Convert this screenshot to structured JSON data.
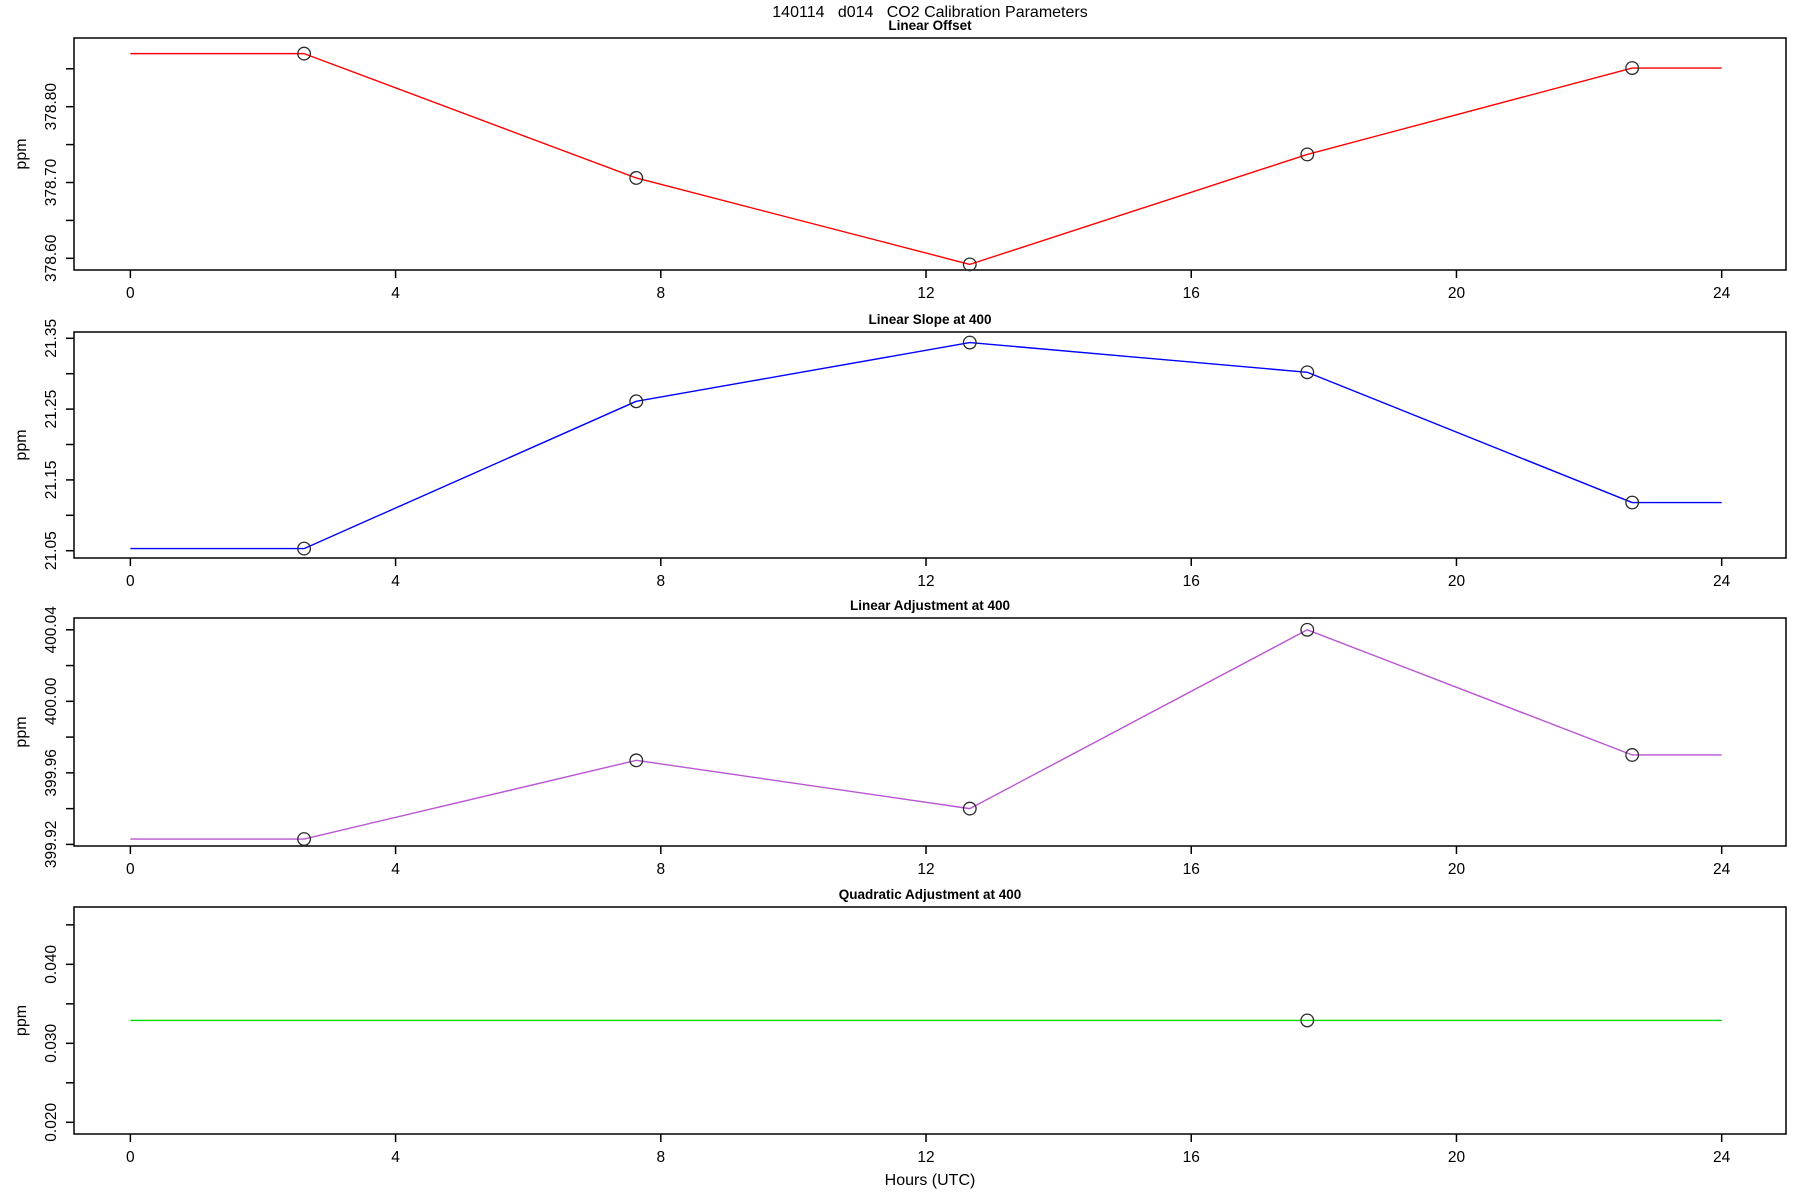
{
  "figure": {
    "title": "140114   d014   CO2 Calibration Parameters",
    "xlabel": "Hours (UTC)",
    "background": "#FFFFFF"
  },
  "chart_data": [
    {
      "type": "line",
      "title": "Linear Offset",
      "ylabel": "ppm",
      "line_color": "#FF0000",
      "marker_color": "#2A2A2A",
      "xlim": [
        -0.85,
        24.97
      ],
      "ylim": [
        378.5846,
        378.8906
      ],
      "xticks": [
        0,
        4,
        8,
        12,
        16,
        20,
        24
      ],
      "xtick_labels": [
        "0",
        "4",
        "8",
        "12",
        "16",
        "20",
        "24"
      ],
      "yticks": [
        378.6,
        378.65,
        378.7,
        378.75,
        378.8,
        378.85
      ],
      "ytick_labels": [
        "378.60",
        "",
        "378.70",
        "",
        "378.80",
        ""
      ],
      "line_x": [
        0,
        2.62,
        7.63,
        12.66,
        17.75,
        22.65,
        24
      ],
      "line_y": [
        378.87,
        378.87,
        378.706,
        378.592,
        378.737,
        378.851,
        378.851
      ],
      "points_x": [
        2.62,
        7.63,
        12.66,
        17.75,
        22.65
      ],
      "points_y": [
        378.87,
        378.706,
        378.592,
        378.737,
        378.851
      ]
    },
    {
      "type": "line",
      "title": "Linear Slope at 400",
      "ylabel": "ppm",
      "line_color": "#0000FF",
      "marker_color": "#2A2A2A",
      "xlim": [
        -0.85,
        24.97
      ],
      "ylim": [
        21.0397,
        21.3589
      ],
      "xticks": [
        0,
        4,
        8,
        12,
        16,
        20,
        24
      ],
      "xtick_labels": [
        "0",
        "4",
        "8",
        "12",
        "16",
        "20",
        "24"
      ],
      "yticks": [
        21.05,
        21.1,
        21.15,
        21.2,
        21.25,
        21.3,
        21.35
      ],
      "ytick_labels": [
        "21.05",
        "",
        "21.15",
        "",
        "21.25",
        "",
        "21.35"
      ],
      "line_x": [
        0,
        2.62,
        7.63,
        12.66,
        17.75,
        22.65,
        24
      ],
      "line_y": [
        21.053,
        21.053,
        21.261,
        21.344,
        21.302,
        21.118,
        21.118
      ],
      "points_x": [
        2.62,
        7.63,
        12.66,
        17.75,
        22.65
      ],
      "points_y": [
        21.053,
        21.261,
        21.344,
        21.302,
        21.118
      ]
    },
    {
      "type": "line",
      "title": "Linear Adjustment at 400",
      "ylabel": "ppm",
      "line_color": "#BA55D3",
      "marker_color": "#2A2A2A",
      "xlim": [
        -0.85,
        24.97
      ],
      "ylim": [
        399.9191,
        400.0466
      ],
      "xticks": [
        0,
        4,
        8,
        12,
        16,
        20,
        24
      ],
      "xtick_labels": [
        "0",
        "4",
        "8",
        "12",
        "16",
        "20",
        "24"
      ],
      "yticks": [
        399.92,
        399.94,
        399.96,
        399.98,
        400.0,
        400.02,
        400.04
      ],
      "ytick_labels": [
        "399.92",
        "",
        "399.96",
        "",
        "400.00",
        "",
        "400.04"
      ],
      "line_x": [
        0,
        2.62,
        7.63,
        12.66,
        17.75,
        22.65,
        24
      ],
      "line_y": [
        399.923,
        399.923,
        399.967,
        399.94,
        400.04,
        399.97,
        399.97
      ],
      "points_x": [
        2.62,
        7.63,
        12.66,
        17.75,
        22.65
      ],
      "points_y": [
        399.923,
        399.967,
        399.94,
        400.04,
        399.97
      ]
    },
    {
      "type": "line",
      "title": "Quadratic Adjustment at 400",
      "ylabel": "ppm",
      "line_color": "#00DD00",
      "marker_color": "#2A2A2A",
      "xlim": [
        -0.85,
        24.97
      ],
      "ylim": [
        0.01852,
        0.04726
      ],
      "xticks": [
        0,
        4,
        8,
        12,
        16,
        20,
        24
      ],
      "xtick_labels": [
        "0",
        "4",
        "8",
        "12",
        "16",
        "20",
        "24"
      ],
      "yticks": [
        0.02,
        0.025,
        0.03,
        0.035,
        0.04,
        0.045
      ],
      "ytick_labels": [
        "0.020",
        "",
        "0.030",
        "",
        "0.040",
        ""
      ],
      "line_x": [
        0,
        24
      ],
      "line_y": [
        0.0329,
        0.0329
      ],
      "points_x": [
        17.75
      ],
      "points_y": [
        0.0329
      ]
    }
  ]
}
